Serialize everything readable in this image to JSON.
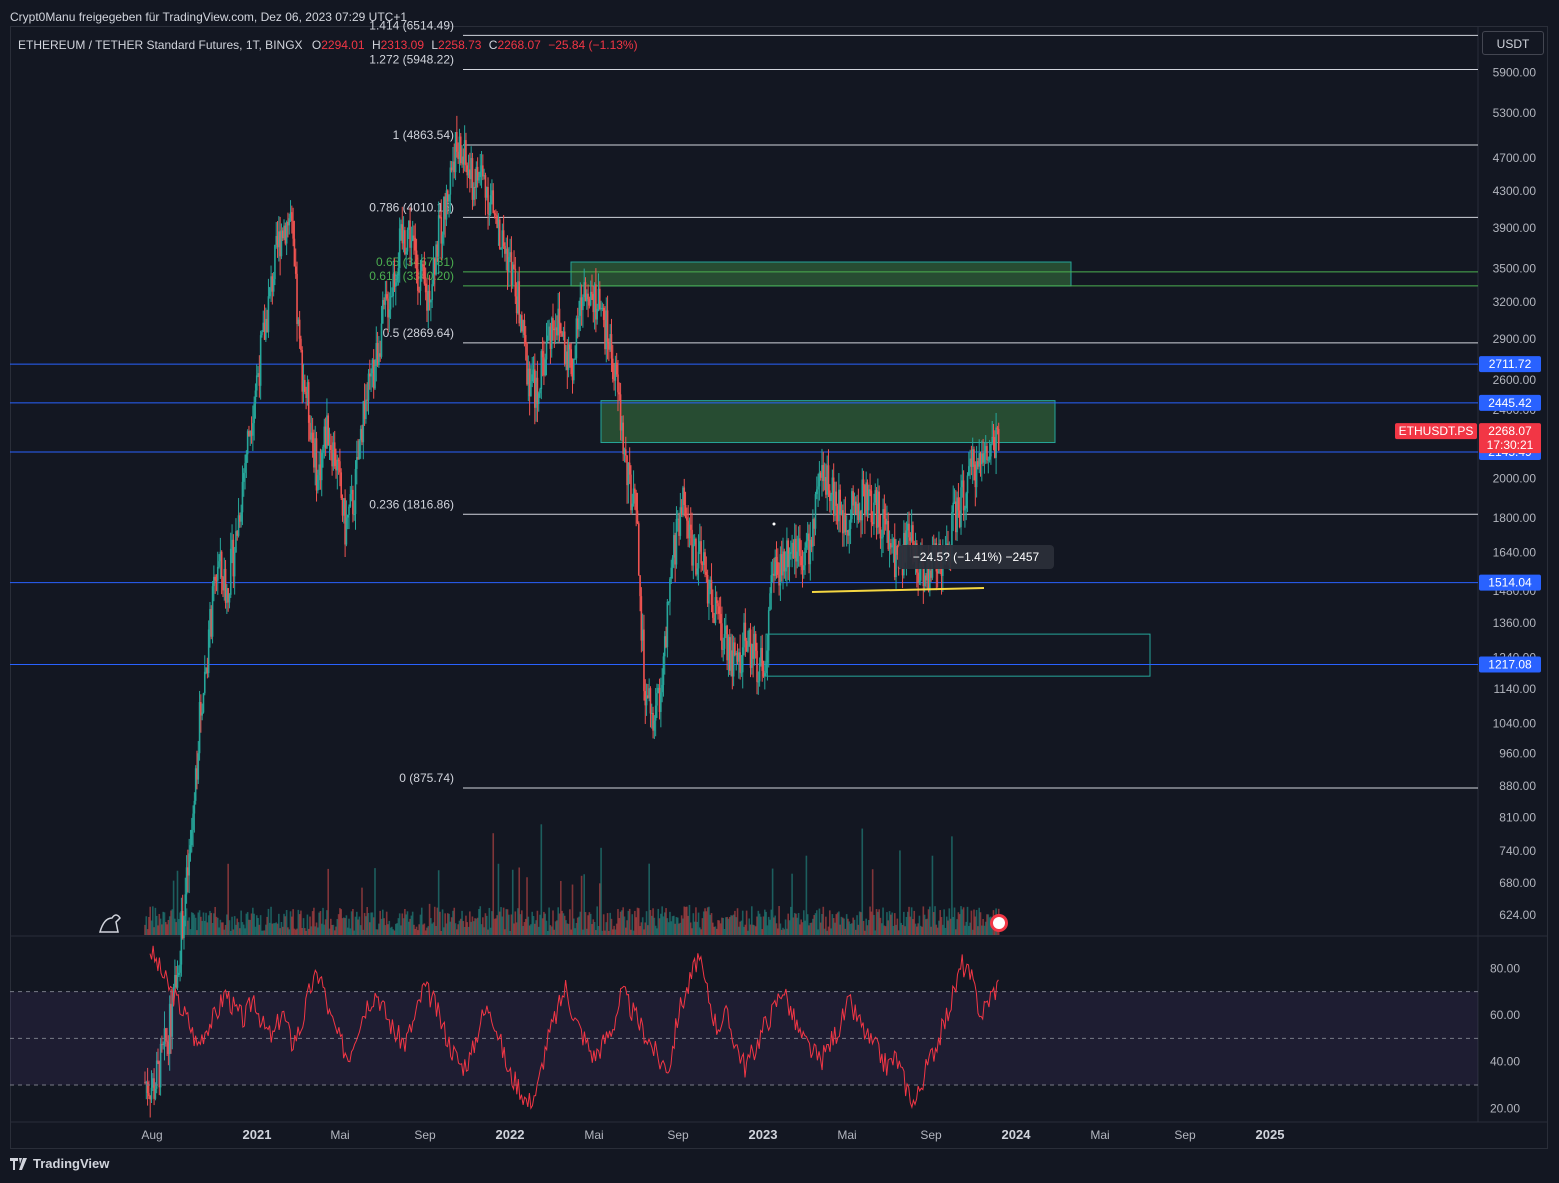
{
  "credit": "Crypt0Manu freigegeben für TradingView.com, Dez 06, 2023 07:29 UTC+1",
  "symbol": {
    "name": "ETHEREUM / TETHER Standard Futures, 1T, BINGX",
    "o_label": "O",
    "o": "2294.01",
    "h_label": "H",
    "h": "2313.09",
    "l_label": "L",
    "l": "2258.73",
    "c_label": "C",
    "c": "2268.07",
    "change": "−25.84 (−1.13%)"
  },
  "currency_button": "USDT",
  "footer_brand": "TradingView",
  "chart_data": [
    {
      "type": "candlestick",
      "price_axis": {
        "scale": "log",
        "ticks": [
          "5900.00",
          "5300.00",
          "4700.00",
          "4300.00",
          "3900.00",
          "3500.00",
          "3200.00",
          "2900.00",
          "2600.00",
          "2400.00",
          "2000.00",
          "1800.00",
          "1640.00",
          "1480.00",
          "1360.00",
          "1240.00",
          "1140.00",
          "1040.00",
          "960.00",
          "880.00",
          "810.00",
          "740.00",
          "680.00",
          "624.00"
        ]
      },
      "time_axis": {
        "labels": [
          {
            "text": "Aug",
            "bold": false
          },
          {
            "text": "2021",
            "bold": true
          },
          {
            "text": "Mai",
            "bold": false
          },
          {
            "text": "Sep",
            "bold": false
          },
          {
            "text": "2022",
            "bold": true
          },
          {
            "text": "Mai",
            "bold": false
          },
          {
            "text": "Sep",
            "bold": false
          },
          {
            "text": "2023",
            "bold": true
          },
          {
            "text": "Mai",
            "bold": false
          },
          {
            "text": "Sep",
            "bold": false
          },
          {
            "text": "2024",
            "bold": true
          },
          {
            "text": "Mai",
            "bold": false
          },
          {
            "text": "Sep",
            "bold": false
          },
          {
            "text": "2025",
            "bold": true
          }
        ]
      },
      "fib_levels": [
        {
          "label": "1.414 (6514.49)",
          "price": 6514.49,
          "color": "#d1d4dc"
        },
        {
          "label": "1.272 (5948.22)",
          "price": 5948.22,
          "color": "#d1d4dc"
        },
        {
          "label": "1 (4863.54)",
          "price": 4863.54,
          "color": "#d1d4dc"
        },
        {
          "label": "0.786 (4010.15)",
          "price": 4010.15,
          "color": "#d1d4dc"
        },
        {
          "label": "0.65 (3467.81)",
          "price": 3467.81,
          "color": "#4caf50"
        },
        {
          "label": "0.618 (3340.20)",
          "price": 3340.2,
          "color": "#4caf50"
        },
        {
          "label": "0.5 (2869.64)",
          "price": 2869.64,
          "color": "#d1d4dc"
        },
        {
          "label": "0.236 (1816.86)",
          "price": 1816.86,
          "color": "#d1d4dc"
        },
        {
          "label": "0 (875.74)",
          "price": 875.74,
          "color": "#d1d4dc"
        }
      ],
      "horizontal_lines": [
        {
          "label": "2711.72",
          "price": 2711.72,
          "color": "#2962ff"
        },
        {
          "label": "2445.42",
          "price": 2445.42,
          "color": "#2962ff"
        },
        {
          "label": "2145.49",
          "price": 2145.49,
          "color": "#2962ff"
        },
        {
          "label": "1514.04",
          "price": 1514.04,
          "color": "#2962ff"
        },
        {
          "label": "1217.08",
          "price": 1217.08,
          "color": "#2962ff"
        }
      ],
      "current_price": {
        "symbol": "ETHUSDT.PS",
        "price": "2268.07",
        "countdown": "17:30:21",
        "color": "#f23645"
      },
      "zones": [
        {
          "from": 3340.2,
          "to": 3560,
          "style": "filled"
        },
        {
          "from": 2200,
          "to": 2460,
          "style": "filled"
        },
        {
          "from": 1180,
          "to": 1320,
          "style": "outline"
        }
      ],
      "measure_label": "−24.5? (−1.41%) −2457",
      "series": [
        {
          "name": "close",
          "values": [
            400,
            395,
            430,
            480,
            600,
            740,
            1050,
            1300,
            1600,
            1480,
            1700,
            2100,
            2500,
            2900,
            3400,
            3900,
            4000,
            2800,
            2400,
            2000,
            2300,
            2100,
            1750,
            1900,
            2400,
            2600,
            3000,
            3300,
            3700,
            3900,
            3500,
            3200,
            3700,
            4100,
            4800,
            4700,
            4400,
            4500,
            4200,
            3800,
            3600,
            3200,
            2700,
            2500,
            2800,
            3100,
            2900,
            2700,
            3200,
            3400,
            3100,
            2900,
            2500,
            2000,
            1800,
            1100,
            1050,
            1200,
            1600,
            1900,
            1700,
            1600,
            1500,
            1350,
            1300,
            1200,
            1300,
            1250,
            1200,
            1560,
            1600,
            1700,
            1650,
            1650,
            1900,
            2050,
            1850,
            1800,
            1850,
            1900,
            1850,
            1800,
            1650,
            1600,
            1700,
            1600,
            1550,
            1650,
            1600,
            1800,
            1900,
            2050,
            2100,
            2200,
            2268
          ]
        }
      ]
    },
    {
      "type": "line",
      "y_axis": {
        "ticks": [
          "80.00",
          "60.00",
          "40.00",
          "20.00"
        ],
        "range": [
          15,
          90
        ]
      },
      "bands": [
        70,
        50,
        30
      ],
      "series": [
        {
          "values": [
            88,
            80,
            72,
            65,
            58,
            47,
            55,
            60,
            70,
            62,
            58,
            68,
            55,
            50,
            62,
            48,
            55,
            72,
            78,
            60,
            50,
            42,
            55,
            65,
            70,
            60,
            52,
            48,
            58,
            72,
            66,
            55,
            45,
            38,
            42,
            58,
            64,
            50,
            35,
            30,
            22,
            28,
            48,
            60,
            72,
            58,
            50,
            42,
            48,
            55,
            70,
            62,
            55,
            48,
            40,
            38,
            62,
            72,
            85,
            70,
            55,
            60,
            48,
            38,
            45,
            55,
            62,
            72,
            60,
            50,
            45,
            40,
            48,
            55,
            65,
            58,
            50,
            45,
            38,
            42,
            30,
            22,
            35,
            45,
            55,
            68,
            82,
            75,
            60,
            68,
            74
          ]
        }
      ]
    }
  ]
}
